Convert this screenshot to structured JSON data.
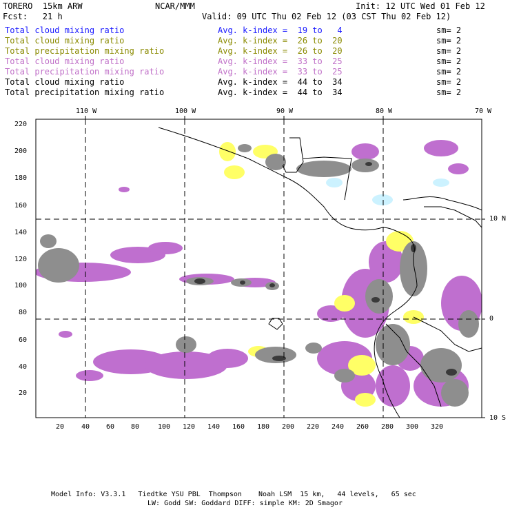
{
  "header": {
    "model": "TORERO  15km ARW",
    "org": "NCAR/MMM",
    "init": "Init: 12 UTC Wed 01 Feb 12",
    "fcst": "Fcst:   21 h",
    "valid": "Valid: 09 UTC Thu 02 Feb 12 (03 CST Thu 02 Feb 12)"
  },
  "legend": [
    {
      "field": "Total cloud mixing ratio",
      "kindex": "Avg. k-index =  19 to   4",
      "sm": "sm= 2",
      "color": "#1a1aff"
    },
    {
      "field": "Total cloud mixing ratio",
      "kindex": "Avg. k-index =  26 to  20",
      "sm": "sm= 2",
      "color": "#8a8a00"
    },
    {
      "field": "Total precipitation mixing ratio",
      "kindex": "Avg. k-index =  26 to  20",
      "sm": "sm= 2",
      "color": "#8a8a00"
    },
    {
      "field": "Total cloud mixing ratio",
      "kindex": "Avg. k-index =  33 to  25",
      "sm": "sm= 2",
      "color": "#c070c8"
    },
    {
      "field": "Total precipitation mixing ratio",
      "kindex": "Avg. k-index =  33 to  25",
      "sm": "sm= 2",
      "color": "#c070c8"
    },
    {
      "field": "Total cloud mixing ratio",
      "kindex": "Avg. k-index =  44 to  34",
      "sm": "sm= 2",
      "color": "#000000"
    },
    {
      "field": "Total precipitation mixing ratio",
      "kindex": "Avg. k-index =  44 to  34",
      "sm": "sm= 2",
      "color": "#000000"
    }
  ],
  "map": {
    "lon_labels": [
      "110 W",
      "100 W",
      "90 W",
      "80 W",
      "70 W"
    ],
    "lat_labels": [
      "10 N",
      "0",
      "10 S"
    ],
    "y_ticks": [
      "20",
      "40",
      "60",
      "80",
      "100",
      "120",
      "140",
      "160",
      "180",
      "200",
      "220"
    ],
    "x_ticks": [
      "20",
      "40",
      "60",
      "80",
      "100",
      "120",
      "140",
      "160",
      "180",
      "200",
      "220",
      "240",
      "260",
      "280",
      "300",
      "320"
    ],
    "colors": {
      "gray": "#8e8e8e",
      "dark": "#3a3a3a",
      "purple": "#bf6fcf",
      "yellow": "#ffff66",
      "cyan": "#ccf2ff"
    }
  },
  "footer": {
    "line1": "Model Info: V3.3.1   Tiedtke YSU PBL  Thompson    Noah LSM  15 km,   44 levels,   65 sec",
    "line2": "LW: Godd SW: Goddard DIFF: simple KM: 2D Smagor"
  }
}
